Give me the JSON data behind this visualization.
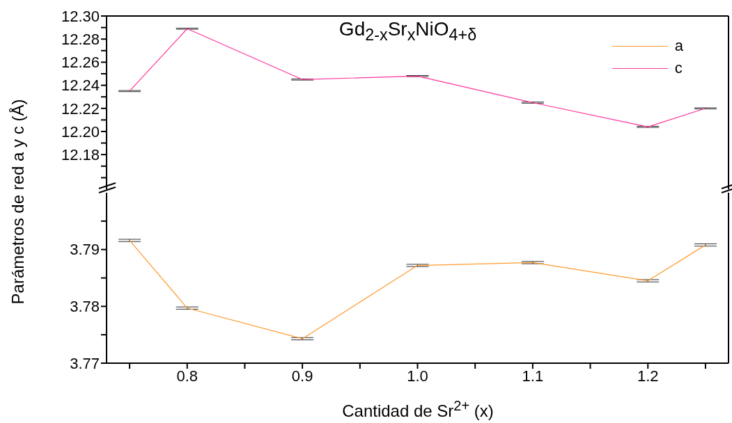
{
  "chart_data": [
    {
      "type": "line",
      "title": "Gd$_{2-x}$Sr$_{x}$NiO$_{4+δ}$",
      "ylabel": "Parámetros de red a y c (Å)",
      "legend": "top right",
      "tick_labels": "y",
      "x": [
        0.75,
        0.8,
        0.9,
        1.0,
        1.1,
        1.2,
        1.25
      ],
      "xlim": [
        0.73,
        1.27
      ],
      "ylim": [
        12.15,
        12.3
      ],
      "yticks": [
        {
          "value": 12.16,
          "label": null
        },
        {
          "value": 12.17,
          "label": null
        },
        12.18,
        {
          "value": 12.19,
          "label": null
        },
        {
          "value": 12.2,
          "label": "12.20"
        },
        {
          "value": 12.21,
          "label": null
        },
        12.22,
        {
          "value": 12.23,
          "label": null
        },
        12.24,
        {
          "value": 12.25,
          "label": null
        },
        12.26,
        {
          "value": 12.27,
          "label": null
        },
        12.28,
        {
          "value": 12.29,
          "label": null
        },
        {
          "value": 12.3,
          "label": "12.30"
        }
      ],
      "series": [
        {
          "name": "c",
          "color": "#ff3399",
          "values": [
            12.235,
            12.289,
            12.245,
            12.248,
            12.225,
            12.204,
            12.22
          ],
          "errors": [
            0.0005,
            0.0005,
            0.0005,
            0.0005,
            0.0005,
            0.0005,
            0.0005
          ]
        }
      ]
    },
    {
      "type": "line",
      "xlabel": "Cantidad de Sr$^{2+}$ (x)",
      "x": [
        0.75,
        0.8,
        0.9,
        1.0,
        1.1,
        1.2,
        1.25
      ],
      "xlim": [
        0.73,
        1.27
      ],
      "xticks": [
        {
          "value": 0.75,
          "label": null
        },
        0.8,
        {
          "value": 0.85,
          "label": null
        },
        0.9,
        {
          "value": 0.95,
          "label": null
        },
        {
          "value": 1,
          "label": "1.0"
        },
        {
          "value": 1.05,
          "label": null
        },
        1.1,
        {
          "value": 1.15,
          "label": null
        },
        1.2,
        {
          "value": 1.25,
          "label": null
        }
      ],
      "ylim": [
        3.77,
        3.8
      ],
      "yticks": [
        3.77,
        {
          "value": 3.775,
          "label": null
        },
        3.78,
        {
          "value": 3.785,
          "label": null
        },
        3.79,
        {
          "value": 3.795,
          "label": null
        }
      ],
      "series": [
        {
          "name": "a",
          "color": "#ff9a2e",
          "values": [
            3.7916,
            3.7797,
            3.7743,
            3.7872,
            3.7877,
            3.7845,
            3.7908
          ],
          "errors": [
            0.0002,
            0.0002,
            0.0002,
            0.0002,
            0.0002,
            0.0002,
            0.0002
          ]
        }
      ]
    }
  ]
}
